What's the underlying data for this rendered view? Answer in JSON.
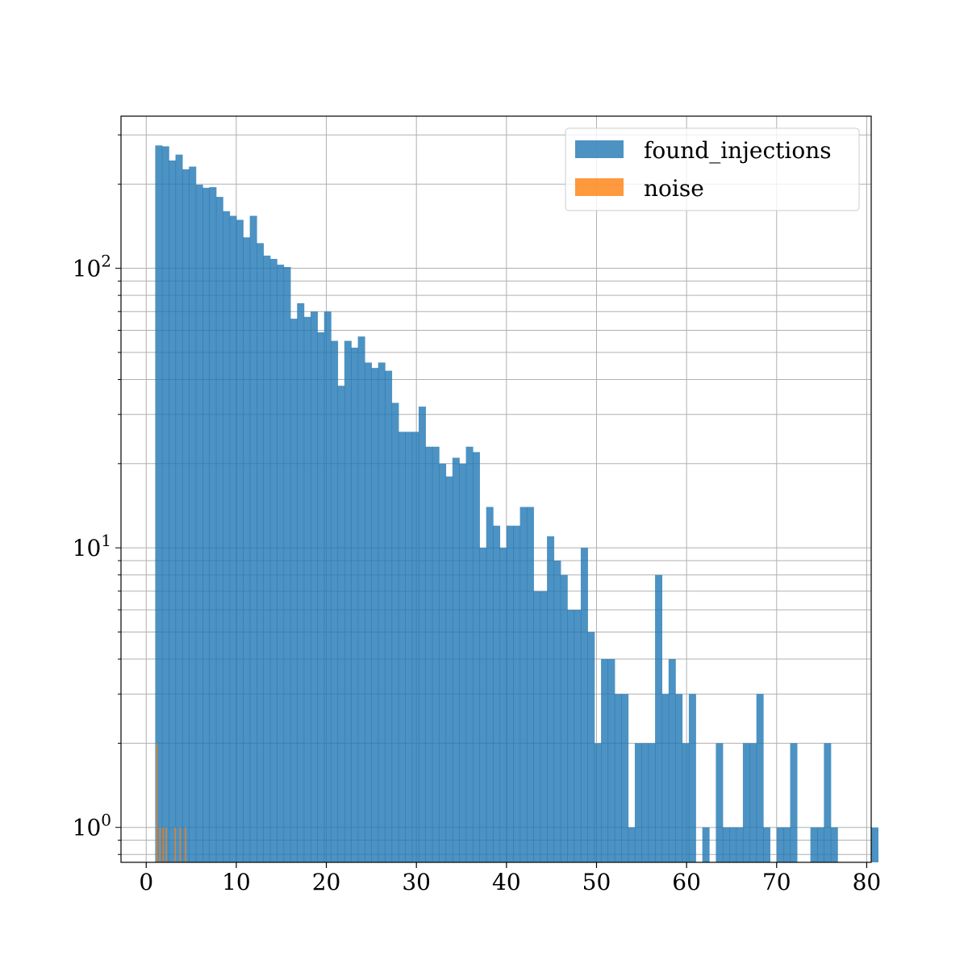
{
  "chart_data": {
    "type": "bar",
    "xlim": [
      -2.8,
      80.5
    ],
    "ylim": [
      0.75,
      350
    ],
    "yscale": "log",
    "grid": true,
    "legend_position": "top-right",
    "x_ticks": [
      0,
      10,
      20,
      30,
      40,
      50,
      60,
      70,
      80
    ],
    "x_tick_labels": [
      "0",
      "10",
      "20",
      "30",
      "40",
      "50",
      "60",
      "70",
      "80"
    ],
    "y_ticks": [
      1,
      10,
      100
    ],
    "y_tick_labels": [
      {
        "base": "10",
        "exp": "0"
      },
      {
        "base": "10",
        "exp": "1"
      },
      {
        "base": "10",
        "exp": "2"
      }
    ],
    "bin_start": 1.0,
    "bin_width": 0.75,
    "series": [
      {
        "name": "found_injections",
        "color": "#1f77b4",
        "alpha": 0.8,
        "counts": [
          275,
          273,
          243,
          255,
          226,
          231,
          199,
          194,
          195,
          180,
          160,
          154,
          149,
          129,
          154,
          123,
          111,
          108,
          103,
          101,
          66,
          75,
          67,
          70,
          59,
          70,
          55,
          38,
          55,
          52,
          57,
          46,
          44,
          46,
          43,
          33,
          26,
          26,
          26,
          32,
          23,
          23,
          20,
          18,
          21,
          20,
          23,
          22,
          10,
          14,
          12,
          10,
          12,
          12,
          14,
          14,
          7,
          7,
          11,
          9,
          8,
          6,
          6,
          10,
          5,
          2,
          4,
          4,
          3,
          3,
          1,
          2,
          2,
          2,
          8,
          3,
          4,
          3,
          2,
          3,
          0,
          1,
          0,
          2,
          1,
          1,
          1,
          2,
          2,
          3,
          1,
          0,
          1,
          1,
          2,
          0,
          0,
          1,
          1,
          2,
          1,
          0,
          0,
          0,
          0,
          0,
          1
        ]
      },
      {
        "name": "noise",
        "color": "#ff7f0e",
        "alpha": 0.8,
        "bars": [
          {
            "x0": 1.1,
            "x1": 1.25,
            "count": 2
          },
          {
            "x0": 1.45,
            "x1": 1.6,
            "count": 1
          },
          {
            "x0": 1.8,
            "x1": 1.95,
            "count": 1
          },
          {
            "x0": 2.15,
            "x1": 2.3,
            "count": 1
          },
          {
            "x0": 3.15,
            "x1": 3.3,
            "count": 1
          },
          {
            "x0": 3.7,
            "x1": 3.85,
            "count": 1
          },
          {
            "x0": 4.3,
            "x1": 4.45,
            "count": 1
          }
        ]
      }
    ]
  },
  "legend": [
    {
      "label": "found_injections",
      "color": "#1f77b4"
    },
    {
      "label": "noise",
      "color": "#ff7f0e"
    }
  ]
}
